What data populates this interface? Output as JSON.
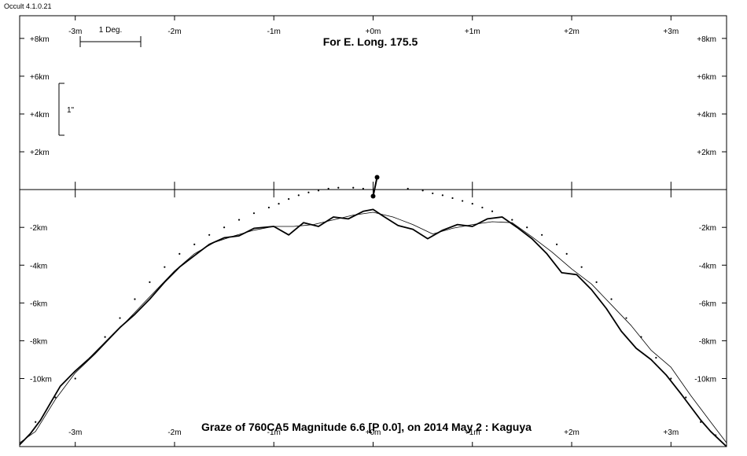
{
  "app": {
    "title": "Occult 4.1.0.21"
  },
  "chart_data": {
    "type": "line",
    "title": "For E. Long. 175.5",
    "footer": "Graze of  760CA5  Magnitude 6.6 [P 0.0],  on 2014 May  2  :  Kaguya",
    "x_unit": "minutes",
    "y_unit": "km",
    "xlim": [
      -3.56,
      3.56
    ],
    "ylim": [
      -13.6,
      9.2
    ],
    "x_ticks": [
      -3,
      -2,
      -1,
      0,
      1,
      2,
      3
    ],
    "x_tick_labels": [
      "-3m",
      "-2m",
      "-1m",
      "+0m",
      "+1m",
      "+2m",
      "+3m"
    ],
    "y_ticks_above": [
      8,
      6,
      4,
      2
    ],
    "y_tick_labels_above": [
      "+8km",
      "+6km",
      "+4km",
      "+2km"
    ],
    "y_ticks_below": [
      -2,
      -4,
      -6,
      -8,
      -10
    ],
    "y_tick_labels_below": [
      "-2km",
      "-4km",
      "-6km",
      "-8km",
      "-10km"
    ],
    "scale_bar_deg_label": "1 Deg.",
    "scale_bar_arcsec_label": "1\"",
    "star_marker": {
      "x": 0.02,
      "y_star": -0.35,
      "y_limb": 0.65
    },
    "series": [
      {
        "style": "bold",
        "x": [
          -3.56,
          -3.45,
          -3.35,
          -3.25,
          -3.15,
          -3.0,
          -2.85,
          -2.7,
          -2.55,
          -2.4,
          -2.25,
          -2.1,
          -1.95,
          -1.8,
          -1.65,
          -1.5,
          -1.35,
          -1.2,
          -1.0,
          -0.85,
          -0.7,
          -0.55,
          -0.4,
          -0.25,
          -0.1,
          0.0,
          0.1,
          0.25,
          0.4,
          0.55,
          0.7,
          0.85,
          1.0,
          1.15,
          1.3,
          1.45,
          1.6,
          1.75,
          1.9,
          2.05,
          2.2,
          2.35,
          2.5,
          2.65,
          2.8,
          2.95,
          3.1,
          3.2,
          3.3,
          3.4,
          3.5,
          3.56
        ],
        "y": [
          -13.5,
          -12.9,
          -12.2,
          -11.3,
          -10.4,
          -9.6,
          -8.9,
          -8.1,
          -7.3,
          -6.6,
          -5.8,
          -4.9,
          -4.1,
          -3.5,
          -2.9,
          -2.55,
          -2.45,
          -2.05,
          -1.95,
          -2.4,
          -1.75,
          -1.95,
          -1.45,
          -1.55,
          -1.15,
          -1.05,
          -1.4,
          -1.9,
          -2.1,
          -2.6,
          -2.15,
          -1.85,
          -1.95,
          -1.55,
          -1.45,
          -2.0,
          -2.6,
          -3.4,
          -4.4,
          -4.5,
          -5.3,
          -6.3,
          -7.5,
          -8.4,
          -9.0,
          -9.8,
          -10.8,
          -11.5,
          -12.2,
          -12.8,
          -13.3,
          -13.6
        ]
      },
      {
        "style": "thin",
        "x": [
          -3.56,
          -3.4,
          -3.2,
          -3.0,
          -2.8,
          -2.6,
          -2.4,
          -2.2,
          -2.0,
          -1.8,
          -1.6,
          -1.4,
          -1.2,
          -1.0,
          -0.8,
          -0.6,
          -0.4,
          -0.2,
          0.0,
          0.2,
          0.4,
          0.6,
          0.8,
          1.0,
          1.2,
          1.4,
          1.6,
          1.8,
          2.0,
          2.2,
          2.4,
          2.6,
          2.8,
          3.0,
          3.2,
          3.4,
          3.56
        ],
        "y": [
          -13.4,
          -12.8,
          -11.1,
          -9.7,
          -8.7,
          -7.6,
          -6.5,
          -5.4,
          -4.3,
          -3.4,
          -2.8,
          -2.45,
          -2.15,
          -1.95,
          -1.95,
          -1.85,
          -1.6,
          -1.35,
          -1.2,
          -1.45,
          -1.85,
          -2.35,
          -2.05,
          -1.85,
          -1.7,
          -1.75,
          -2.5,
          -3.3,
          -4.2,
          -5.0,
          -6.1,
          -7.2,
          -8.5,
          -9.4,
          -10.9,
          -12.3,
          -13.4
        ]
      },
      {
        "style": "dots",
        "x": [
          -3.4,
          -3.2,
          -3.0,
          -2.85,
          -2.7,
          -2.55,
          -2.4,
          -2.25,
          -2.1,
          -1.95,
          -1.8,
          -1.65,
          -1.5,
          -1.35,
          -1.2,
          -1.05,
          -0.95,
          -0.85,
          -0.75,
          -0.65,
          -0.55,
          -0.45,
          -0.35,
          -0.2,
          -0.1,
          0.35,
          0.5,
          0.6,
          0.7,
          0.8,
          0.9,
          1.0,
          1.1,
          1.2,
          1.4,
          1.55,
          1.7,
          1.85,
          1.95,
          2.1,
          2.25,
          2.4,
          2.55,
          2.7,
          2.85,
          3.0,
          3.15,
          3.3,
          3.45
        ],
        "y": [
          -12.3,
          -11.0,
          -10.0,
          -8.9,
          -7.8,
          -6.8,
          -5.8,
          -4.9,
          -4.1,
          -3.4,
          -2.9,
          -2.4,
          -2.0,
          -1.6,
          -1.25,
          -0.95,
          -0.75,
          -0.5,
          -0.3,
          -0.15,
          -0.05,
          0.05,
          0.1,
          0.1,
          0.05,
          0.05,
          -0.05,
          -0.2,
          -0.3,
          -0.45,
          -0.6,
          -0.75,
          -0.95,
          -1.15,
          -1.6,
          -2.0,
          -2.4,
          -2.9,
          -3.4,
          -4.1,
          -4.9,
          -5.8,
          -6.8,
          -7.8,
          -8.9,
          -10.0,
          -11.0,
          -12.3,
          -13.0
        ]
      }
    ]
  }
}
